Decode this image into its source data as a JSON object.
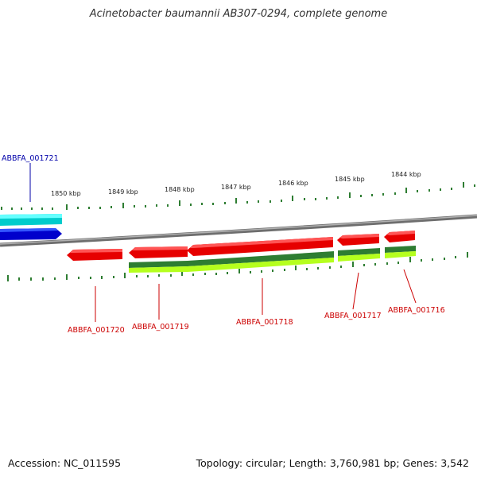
{
  "title": "Acinetobacter baumannii AB307-0294, complete genome",
  "footer": {
    "accession": "Accession: NC_011595",
    "summary": "Topology: circular; Length: 3,760,981 bp; Genes: 3,542"
  },
  "colors": {
    "backbone": "#808080",
    "tick": "#2e7d32",
    "cds": "#e60000",
    "gene_dark": "#2e7d32",
    "gene_light": "#a5e000",
    "blue_cds": "#0000cc",
    "cyan_track": "#00d8d8",
    "label_red": "#cc0000",
    "label_blue": "#0000aa"
  },
  "scale_labels": [
    "1850 kbp",
    "1849 kbp",
    "1848 kbp",
    "1847 kbp",
    "1846 kbp",
    "1845 kbp",
    "1844 kbp"
  ],
  "genes": [
    {
      "label": "ABBFA_001721",
      "strand": "blue"
    },
    {
      "label": "ABBFA_001720",
      "strand": "red"
    },
    {
      "label": "ABBFA_001719",
      "strand": "red"
    },
    {
      "label": "ABBFA_001718",
      "strand": "red"
    },
    {
      "label": "ABBFA_001717",
      "strand": "red"
    },
    {
      "label": "ABBFA_001716",
      "strand": "red"
    }
  ]
}
